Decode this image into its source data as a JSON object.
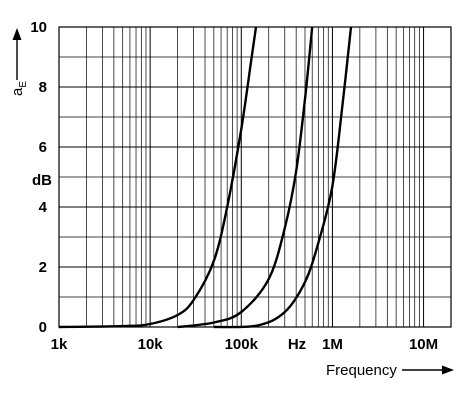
{
  "chart_data": {
    "type": "line",
    "title": "",
    "xlabel": "Frequency",
    "ylabel": "a",
    "ylabel_subscript": "E",
    "y_unit": "dB",
    "x_unit": "Hz",
    "x_scale": "log",
    "xlim": [
      1000,
      20000000
    ],
    "ylim": [
      0,
      10
    ],
    "grid": true,
    "legend": "none",
    "x_ticks": [
      {
        "value": 1000,
        "label": "1k"
      },
      {
        "value": 10000,
        "label": "10k"
      },
      {
        "value": 100000,
        "label": "100k"
      },
      {
        "value": 1000000,
        "label": "1M"
      },
      {
        "value": 10000000,
        "label": "10M"
      }
    ],
    "y_ticks": [
      {
        "value": 0,
        "label": "0"
      },
      {
        "value": 2,
        "label": "2"
      },
      {
        "value": 4,
        "label": "4"
      },
      {
        "value": 6,
        "label": "6"
      },
      {
        "value": 8,
        "label": "8"
      },
      {
        "value": 10,
        "label": "10"
      }
    ],
    "series": [
      {
        "color": "#000000",
        "points": [
          [
            1000,
            0
          ],
          [
            5000,
            0.03
          ],
          [
            10000,
            0.1
          ],
          [
            20000,
            0.4
          ],
          [
            30000,
            0.9
          ],
          [
            50000,
            2.2
          ],
          [
            70000,
            4.0
          ],
          [
            100000,
            6.6
          ],
          [
            130000,
            9.0
          ],
          [
            145000,
            10.0
          ]
        ]
      },
      {
        "color": "#000000",
        "points": [
          [
            20000,
            0
          ],
          [
            50000,
            0.15
          ],
          [
            100000,
            0.5
          ],
          [
            200000,
            1.6
          ],
          [
            300000,
            3.3
          ],
          [
            400000,
            5.2
          ],
          [
            500000,
            7.6
          ],
          [
            600000,
            10.0
          ]
        ]
      },
      {
        "color": "#000000",
        "points": [
          [
            50000,
            0
          ],
          [
            150000,
            0.05
          ],
          [
            300000,
            0.5
          ],
          [
            500000,
            1.5
          ],
          [
            700000,
            2.8
          ],
          [
            1000000,
            4.7
          ],
          [
            1300000,
            7.5
          ],
          [
            1600000,
            10.0
          ]
        ]
      }
    ]
  }
}
